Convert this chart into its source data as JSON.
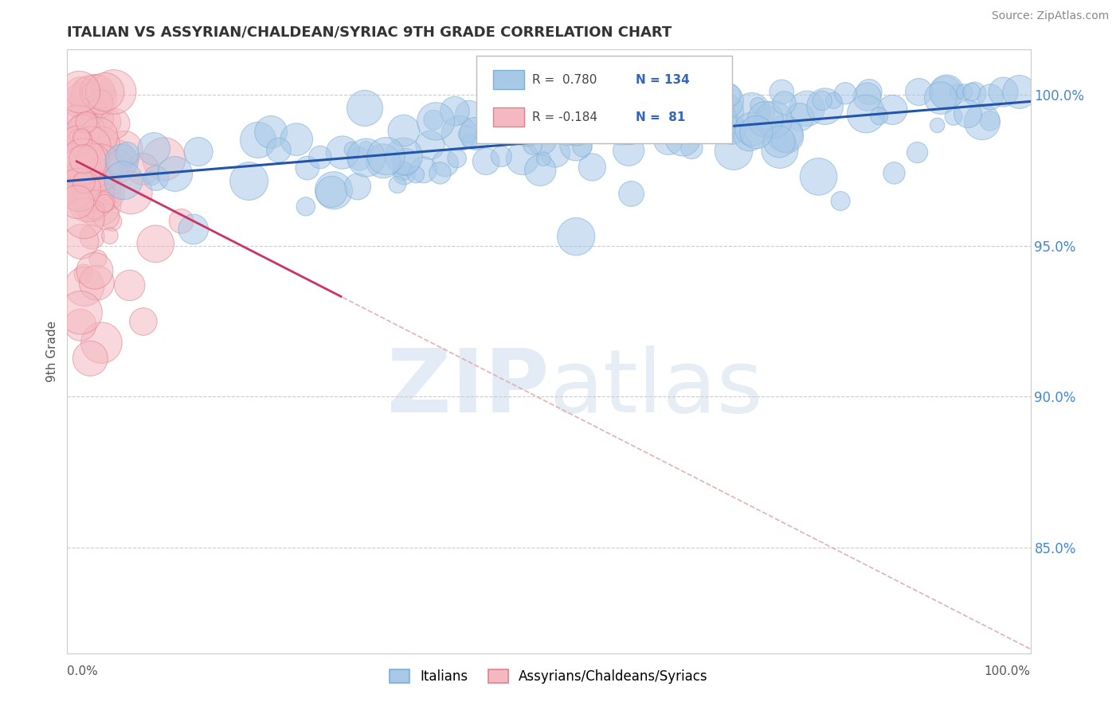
{
  "title": "ITALIAN VS ASSYRIAN/CHALDEAN/SYRIAC 9TH GRADE CORRELATION CHART",
  "source_text": "Source: ZipAtlas.com",
  "ylabel": "9th Grade",
  "blue_R": 0.78,
  "blue_N": 134,
  "pink_R": -0.184,
  "pink_N": 81,
  "blue_color": "#a8c8e8",
  "blue_edge_color": "#7bafd4",
  "pink_color": "#f4b8c0",
  "pink_edge_color": "#e08090",
  "blue_line_color": "#2255aa",
  "pink_line_color": "#cc3366",
  "dashed_line_color": "#ddaaaa",
  "legend_label_blue": "Italians",
  "legend_label_pink": "Assyrians/Chaldeans/Syriacs",
  "watermark_zip": "ZIP",
  "watermark_atlas": "atlas",
  "background_color": "#ffffff",
  "grid_color": "#cccccc",
  "ytick_vals": [
    0.85,
    0.9,
    0.95,
    1.0
  ],
  "ytick_labels": [
    "85.0%",
    "90.0%",
    "95.0%",
    "100.0%"
  ],
  "ymin": 0.815,
  "ymax": 1.015,
  "xmin": -0.01,
  "xmax": 1.01
}
